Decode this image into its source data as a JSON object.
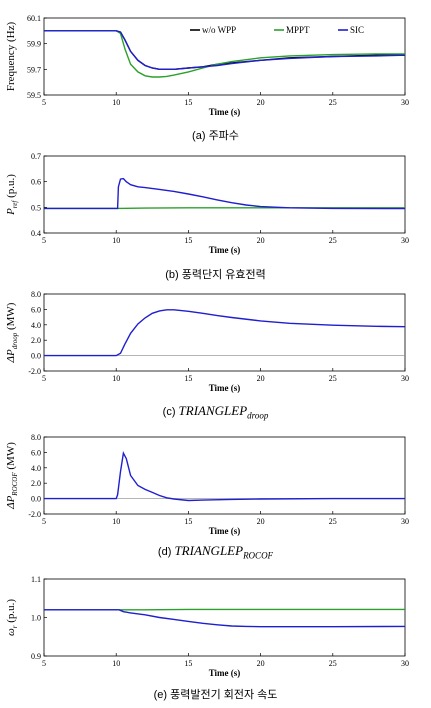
{
  "colors": {
    "wo_wpp": "#000000",
    "mppt": "#2ca02c",
    "sic": "#1f1fcf"
  },
  "chart_data": [
    {
      "type": "line",
      "xlabel": "Time (s)",
      "ylabel": "Frequency (Hz)",
      "xlim": [
        5,
        30
      ],
      "ylim": [
        59.5,
        60.1
      ],
      "xticks": [
        "5",
        "10",
        "15",
        "20",
        "25",
        "30"
      ],
      "yticks": [
        "59.5",
        "59.7",
        "59.9",
        "60.1"
      ],
      "legend": "top-right",
      "caption_prefix": "(a)",
      "caption_text": "주파수",
      "series": [
        {
          "name": "w/o WPP",
          "color": "#000000",
          "x": [
            5,
            10,
            10.3,
            10.6,
            11,
            11.5,
            12,
            12.5,
            13,
            13.5,
            14,
            15,
            16,
            17,
            18,
            20,
            22,
            25,
            28,
            30
          ],
          "y": [
            60.0,
            60.0,
            59.99,
            59.93,
            59.84,
            59.77,
            59.73,
            59.71,
            59.7,
            59.7,
            59.7,
            59.71,
            59.72,
            59.74,
            59.75,
            59.77,
            59.79,
            59.8,
            59.81,
            59.81
          ]
        },
        {
          "name": "MPPT",
          "color": "#2ca02c",
          "x": [
            5,
            10,
            10.3,
            10.6,
            11,
            11.5,
            12,
            12.5,
            13,
            13.5,
            14,
            15,
            16,
            17,
            18,
            20,
            22,
            25,
            28,
            30
          ],
          "y": [
            60.0,
            60.0,
            59.98,
            59.86,
            59.74,
            59.68,
            59.65,
            59.64,
            59.64,
            59.645,
            59.655,
            59.68,
            59.71,
            59.74,
            59.76,
            59.79,
            59.805,
            59.815,
            59.82,
            59.82
          ]
        },
        {
          "name": "SIC",
          "color": "#1f1fcf",
          "x": [
            5,
            10,
            10.3,
            10.6,
            11,
            11.5,
            12,
            12.5,
            13,
            13.5,
            14,
            15,
            16,
            17,
            18,
            20,
            22,
            25,
            28,
            30
          ],
          "y": [
            60.0,
            60.0,
            59.99,
            59.93,
            59.84,
            59.77,
            59.73,
            59.71,
            59.7,
            59.7,
            59.7,
            59.71,
            59.72,
            59.73,
            59.745,
            59.77,
            59.785,
            59.8,
            59.805,
            59.81
          ]
        }
      ]
    },
    {
      "type": "line",
      "xlabel": "Time (s)",
      "ylabel": "P",
      "ylabel_sub": "ref",
      "ylabel_unit": " (p.u.)",
      "xlim": [
        5,
        30
      ],
      "ylim": [
        0.4,
        0.7
      ],
      "xticks": [
        "5",
        "10",
        "15",
        "20",
        "25",
        "30"
      ],
      "yticks": [
        "0.4",
        "0.5",
        "0.6",
        "0.7"
      ],
      "caption_prefix": "(b)",
      "caption_text": "풍력단지 유효전력",
      "series": [
        {
          "name": "MPPT",
          "color": "#2ca02c",
          "x": [
            5,
            10,
            12,
            15,
            20,
            25,
            30
          ],
          "y": [
            0.496,
            0.496,
            0.497,
            0.498,
            0.498,
            0.498,
            0.498
          ]
        },
        {
          "name": "SIC",
          "color": "#1f1fcf",
          "x": [
            5,
            10.1,
            10.15,
            10.3,
            10.5,
            10.7,
            11,
            11.5,
            12,
            13,
            14,
            15,
            16,
            17,
            18,
            19,
            20,
            22,
            25,
            30
          ],
          "y": [
            0.496,
            0.496,
            0.58,
            0.61,
            0.612,
            0.6,
            0.588,
            0.58,
            0.577,
            0.57,
            0.562,
            0.552,
            0.541,
            0.529,
            0.518,
            0.509,
            0.503,
            0.498,
            0.496,
            0.495
          ]
        }
      ]
    },
    {
      "type": "line",
      "xlabel": "Time (s)",
      "ylabel": "ΔP",
      "ylabel_sub": "droop",
      "ylabel_unit": " (MW)",
      "xlim": [
        5,
        30
      ],
      "ylim": [
        -2,
        8
      ],
      "xticks": [
        "5",
        "10",
        "15",
        "20",
        "25",
        "30"
      ],
      "yticks": [
        "-2.0",
        "0.0",
        "2.0",
        "4.0",
        "6.0",
        "8.0"
      ],
      "caption_prefix": "(c)",
      "caption_math": "TRIANGLEP",
      "caption_sub": "droop",
      "series": [
        {
          "name": "SIC",
          "color": "#1f1fcf",
          "x": [
            5,
            10,
            10.3,
            10.6,
            11,
            11.5,
            12,
            12.5,
            13,
            13.5,
            14,
            15,
            16,
            17,
            18,
            20,
            22,
            25,
            28,
            30
          ],
          "y": [
            0,
            0,
            0.3,
            1.5,
            2.9,
            4.1,
            4.9,
            5.5,
            5.8,
            5.95,
            5.95,
            5.75,
            5.5,
            5.2,
            4.95,
            4.5,
            4.2,
            3.95,
            3.8,
            3.75
          ]
        }
      ]
    },
    {
      "type": "line",
      "xlabel": "Time (s)",
      "ylabel": "ΔP",
      "ylabel_sub": "ROCOF",
      "ylabel_unit": " (MW)",
      "xlim": [
        5,
        30
      ],
      "ylim": [
        -2,
        8
      ],
      "xticks": [
        "5",
        "10",
        "15",
        "20",
        "25",
        "30"
      ],
      "yticks": [
        "-2.0",
        "0.0",
        "2.0",
        "4.0",
        "6.0",
        "8.0"
      ],
      "caption_prefix": "(d)",
      "caption_math": "TRIANGLEP",
      "caption_sub": "ROCOF",
      "series": [
        {
          "name": "SIC",
          "color": "#1f1fcf",
          "x": [
            5,
            10,
            10.1,
            10.3,
            10.5,
            10.7,
            11,
            11.5,
            12,
            12.5,
            13,
            13.5,
            14,
            15,
            16,
            18,
            20,
            25,
            30
          ],
          "y": [
            0,
            0,
            0.5,
            3.5,
            5.9,
            5.2,
            3.0,
            1.7,
            1.2,
            0.8,
            0.4,
            0.1,
            -0.05,
            -0.25,
            -0.2,
            -0.1,
            -0.05,
            0,
            0
          ]
        }
      ]
    },
    {
      "type": "line",
      "xlabel": "Time (s)",
      "ylabel": "ω",
      "ylabel_sub": "r",
      "ylabel_unit": " (p.u.)",
      "xlim": [
        5,
        30
      ],
      "ylim": [
        0.9,
        1.1
      ],
      "xticks": [
        "5",
        "10",
        "15",
        "20",
        "25",
        "30"
      ],
      "yticks": [
        "0.9",
        "1.0",
        "1.1"
      ],
      "caption_prefix": "(e)",
      "caption_text": "풍력발전기 회전자 속도",
      "series": [
        {
          "name": "MPPT",
          "color": "#2ca02c",
          "x": [
            5,
            10,
            12,
            15,
            20,
            25,
            30
          ],
          "y": [
            1.02,
            1.02,
            1.02,
            1.021,
            1.021,
            1.021,
            1.021
          ]
        },
        {
          "name": "SIC",
          "color": "#1f1fcf",
          "x": [
            5,
            10.2,
            10.5,
            11,
            12,
            13,
            14,
            15,
            16,
            17,
            18,
            19,
            20,
            22,
            25,
            30
          ],
          "y": [
            1.02,
            1.02,
            1.015,
            1.012,
            1.007,
            1.0,
            0.995,
            0.99,
            0.985,
            0.981,
            0.978,
            0.977,
            0.976,
            0.976,
            0.976,
            0.977
          ]
        }
      ]
    }
  ]
}
